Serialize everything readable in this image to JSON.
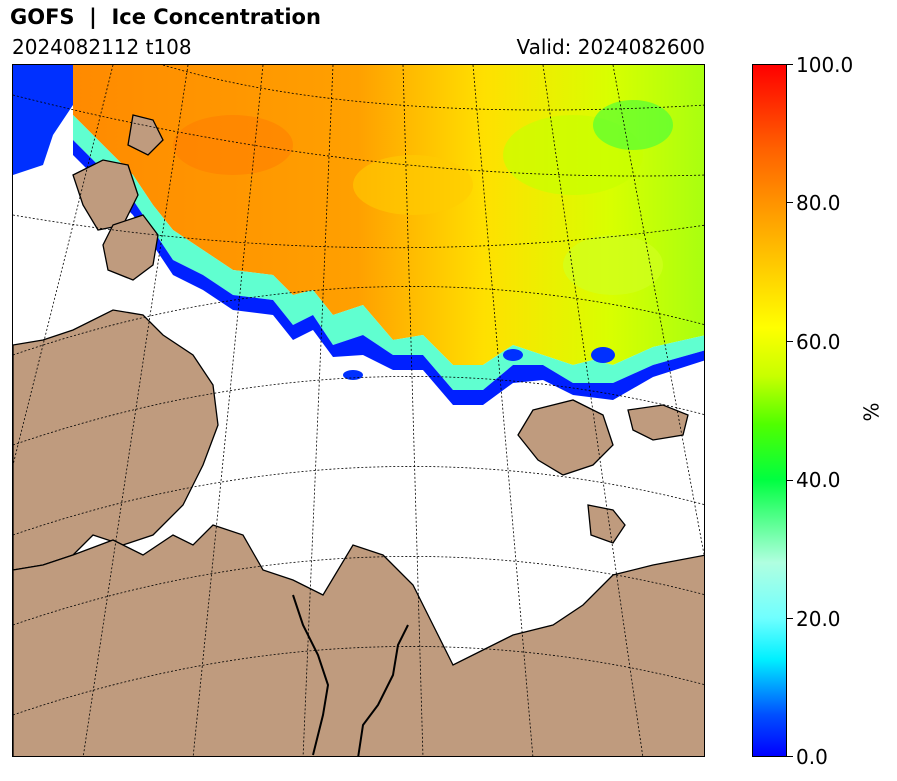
{
  "header": {
    "title": "GOFS  |  Ice Concentration",
    "run": "2024082112 t108",
    "valid": "Valid: 2024082600"
  },
  "colorbar": {
    "labels": [
      "100.0",
      "80.0",
      "60.0",
      "40.0",
      "20.0",
      "0.0"
    ],
    "unit": "%",
    "range": [
      0,
      100
    ]
  },
  "colors": {
    "land": "#bf9b7e",
    "ocean": "#ffffff",
    "ice_high": "#ff8000",
    "ice_mid": "#ffff00",
    "ice_low": "#0000ff"
  }
}
